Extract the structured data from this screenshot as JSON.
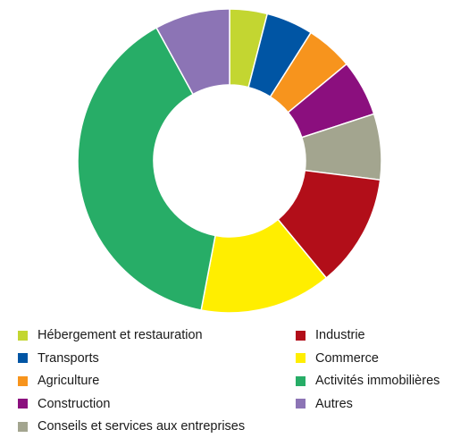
{
  "chart_data": {
    "type": "pie",
    "donut": true,
    "title": "",
    "slices": [
      {
        "label": "Hébergement et restauration",
        "value": 4,
        "color": "#c3d631"
      },
      {
        "label": "Transports",
        "value": 5,
        "color": "#0055a4"
      },
      {
        "label": "Agriculture",
        "value": 5,
        "color": "#f7941d"
      },
      {
        "label": "Construction",
        "value": 6,
        "color": "#8b0f7e"
      },
      {
        "label": "Conseils et services aux entreprises",
        "value": 7,
        "color": "#a3a58f"
      },
      {
        "label": "Industrie",
        "value": 12,
        "color": "#b20e19"
      },
      {
        "label": "Commerce",
        "value": 14,
        "color": "#ffee00"
      },
      {
        "label": "Activités immobilières",
        "value": 39,
        "color": "#27ad67"
      },
      {
        "label": "Autres",
        "value": 8,
        "color": "#8c74b5"
      }
    ],
    "legend_position": "bottom",
    "legend": {
      "left": [
        {
          "label": "Hébergement et restauration",
          "color": "#c3d631"
        },
        {
          "label": "Transports",
          "color": "#0055a4"
        },
        {
          "label": "Agriculture",
          "color": "#f7941d"
        },
        {
          "label": "Construction",
          "color": "#8b0f7e"
        },
        {
          "label": "Conseils et services aux entreprises",
          "color": "#a3a58f"
        }
      ],
      "right": [
        {
          "label": "Industrie",
          "color": "#b20e19"
        },
        {
          "label": "Commerce",
          "color": "#ffee00"
        },
        {
          "label": "Activités immobilières",
          "color": "#27ad67"
        },
        {
          "label": "Autres",
          "color": "#8c74b5"
        }
      ]
    }
  }
}
